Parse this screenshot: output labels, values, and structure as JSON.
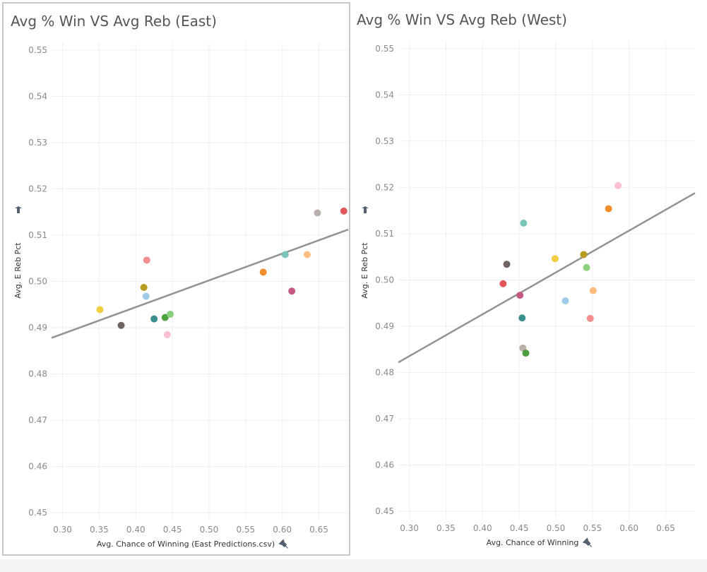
{
  "charts": {
    "east": {
      "title": "Avg % Win VS Avg Reb (East)",
      "xlabel": "Avg. Chance of Winning (East Predictions.csv)",
      "ylabel": "Avg. E Reb Pct",
      "xticks": [
        "0.30",
        "0.35",
        "0.40",
        "0.45",
        "0.50",
        "0.55",
        "0.60",
        "0.65"
      ],
      "yticks": [
        "0.45",
        "0.46",
        "0.47",
        "0.48",
        "0.49",
        "0.50",
        "0.51",
        "0.52",
        "0.53",
        "0.54",
        "0.55"
      ],
      "pin_icon": "pin-icon"
    },
    "west": {
      "title": "Avg % Win VS Avg Reb (West)",
      "xlabel": "Avg. Chance of Winning",
      "ylabel": "Avg. E Reb Pct",
      "xticks": [
        "0.30",
        "0.35",
        "0.40",
        "0.45",
        "0.50",
        "0.55",
        "0.60",
        "0.65"
      ],
      "yticks": [
        "0.45",
        "0.46",
        "0.47",
        "0.48",
        "0.49",
        "0.50",
        "0.51",
        "0.52",
        "0.53",
        "0.54",
        "0.55"
      ],
      "pin_icon": "pin-icon"
    }
  },
  "chart_data": [
    {
      "type": "scatter",
      "title": "Avg % Win VS Avg Reb (East)",
      "xlabel": "Avg. Chance of Winning (East Predictions.csv)",
      "ylabel": "Avg. E Reb Pct",
      "xlim": [
        0.285,
        0.69
      ],
      "ylim": [
        0.4485,
        0.5515
      ],
      "grid": true,
      "trend_line": {
        "x0": 0.285,
        "y0": 0.4878,
        "x1": 0.69,
        "y1": 0.5112,
        "color": "#939393"
      },
      "points": [
        {
          "x": 0.351,
          "y": 0.4939,
          "color": "#F1CE40"
        },
        {
          "x": 0.38,
          "y": 0.4905,
          "color": "#6F6362"
        },
        {
          "x": 0.411,
          "y": 0.4987,
          "color": "#B79A20"
        },
        {
          "x": 0.415,
          "y": 0.5046,
          "color": "#F38E8E"
        },
        {
          "x": 0.414,
          "y": 0.4968,
          "color": "#A0CBE8"
        },
        {
          "x": 0.425,
          "y": 0.4919,
          "color": "#3A8F8E"
        },
        {
          "x": 0.44,
          "y": 0.4922,
          "color": "#4E9F3D"
        },
        {
          "x": 0.447,
          "y": 0.4929,
          "color": "#8CD17D"
        },
        {
          "x": 0.443,
          "y": 0.4885,
          "color": "#FABFD2"
        },
        {
          "x": 0.574,
          "y": 0.502,
          "color": "#F28E2B"
        },
        {
          "x": 0.604,
          "y": 0.5058,
          "color": "#7BC4BA"
        },
        {
          "x": 0.613,
          "y": 0.4979,
          "color": "#C45A83"
        },
        {
          "x": 0.634,
          "y": 0.5058,
          "color": "#FFBE7D"
        },
        {
          "x": 0.648,
          "y": 0.5148,
          "color": "#BAB0AC"
        },
        {
          "x": 0.684,
          "y": 0.5152,
          "color": "#E15759"
        }
      ]
    },
    {
      "type": "scatter",
      "title": "Avg % Win VS Avg Reb (West)",
      "xlabel": "Avg. Chance of Winning",
      "ylabel": "Avg. E Reb Pct",
      "xlim": [
        0.285,
        0.69
      ],
      "ylim": [
        0.4485,
        0.5515
      ],
      "grid": true,
      "trend_line": {
        "x0": 0.285,
        "y0": 0.4822,
        "x1": 0.69,
        "y1": 0.5188,
        "color": "#939393"
      },
      "points": [
        {
          "x": 0.428,
          "y": 0.4992,
          "color": "#E15759"
        },
        {
          "x": 0.433,
          "y": 0.5034,
          "color": "#6F6362"
        },
        {
          "x": 0.451,
          "y": 0.4967,
          "color": "#C45A83"
        },
        {
          "x": 0.454,
          "y": 0.4918,
          "color": "#3A8F8E"
        },
        {
          "x": 0.455,
          "y": 0.4853,
          "color": "#BAB0AC"
        },
        {
          "x": 0.456,
          "y": 0.5123,
          "color": "#7BC4BA"
        },
        {
          "x": 0.459,
          "y": 0.4842,
          "color": "#4E9F3D"
        },
        {
          "x": 0.499,
          "y": 0.5046,
          "color": "#F1CE40"
        },
        {
          "x": 0.513,
          "y": 0.4955,
          "color": "#A0CBE8"
        },
        {
          "x": 0.538,
          "y": 0.5055,
          "color": "#B79A20"
        },
        {
          "x": 0.542,
          "y": 0.5027,
          "color": "#8CD17D"
        },
        {
          "x": 0.547,
          "y": 0.4917,
          "color": "#F38E8E"
        },
        {
          "x": 0.551,
          "y": 0.4977,
          "color": "#FFBE7D"
        },
        {
          "x": 0.572,
          "y": 0.5154,
          "color": "#F28E2B"
        },
        {
          "x": 0.585,
          "y": 0.5204,
          "color": "#FABFD2"
        }
      ]
    }
  ]
}
